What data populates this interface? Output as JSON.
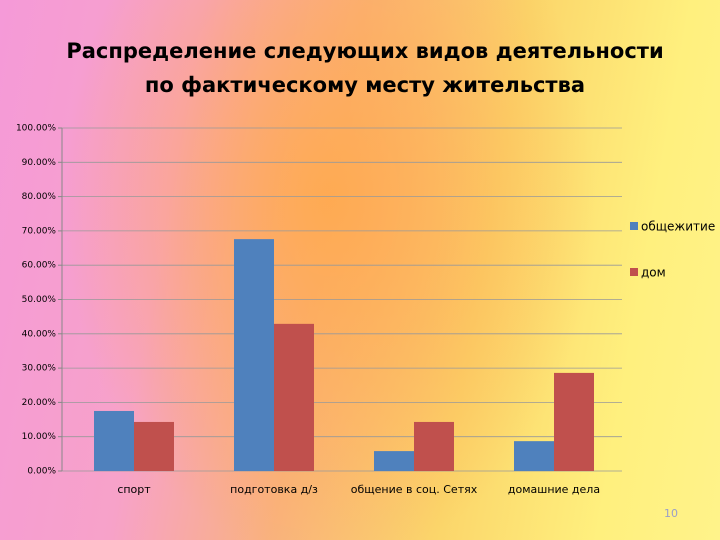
{
  "chart_data": {
    "type": "bar",
    "title": "Распределение следующих  видов деятельности",
    "subtitle": "по  фактическому месту жительства",
    "categories": [
      "спорт",
      "подготовка д/з",
      "общение в соц. Сетях",
      "домашние дела"
    ],
    "series": [
      {
        "name": "общежитие",
        "color": "#4f81bd",
        "values": [
          17.5,
          67.6,
          5.8,
          8.7
        ]
      },
      {
        "name": "дом",
        "color": "#c0504d",
        "values": [
          14.3,
          42.9,
          14.3,
          28.6
        ]
      }
    ],
    "ylim": [
      0,
      100
    ],
    "yticks": [
      {
        "value": 0,
        "label": "0.00%"
      },
      {
        "value": 10,
        "label": "10.00%"
      },
      {
        "value": 20,
        "label": "20.00%"
      },
      {
        "value": 30,
        "label": "30.00%"
      },
      {
        "value": 40,
        "label": "40.00%"
      },
      {
        "value": 50,
        "label": "50.00%"
      },
      {
        "value": 60,
        "label": "60.00%"
      },
      {
        "value": 70,
        "label": "70.00%"
      },
      {
        "value": 80,
        "label": "80.00%"
      },
      {
        "value": 90,
        "label": "90.00%"
      },
      {
        "value": 100,
        "label": "100.00%"
      }
    ],
    "grid": true,
    "legend": "right"
  },
  "page_number": "10"
}
